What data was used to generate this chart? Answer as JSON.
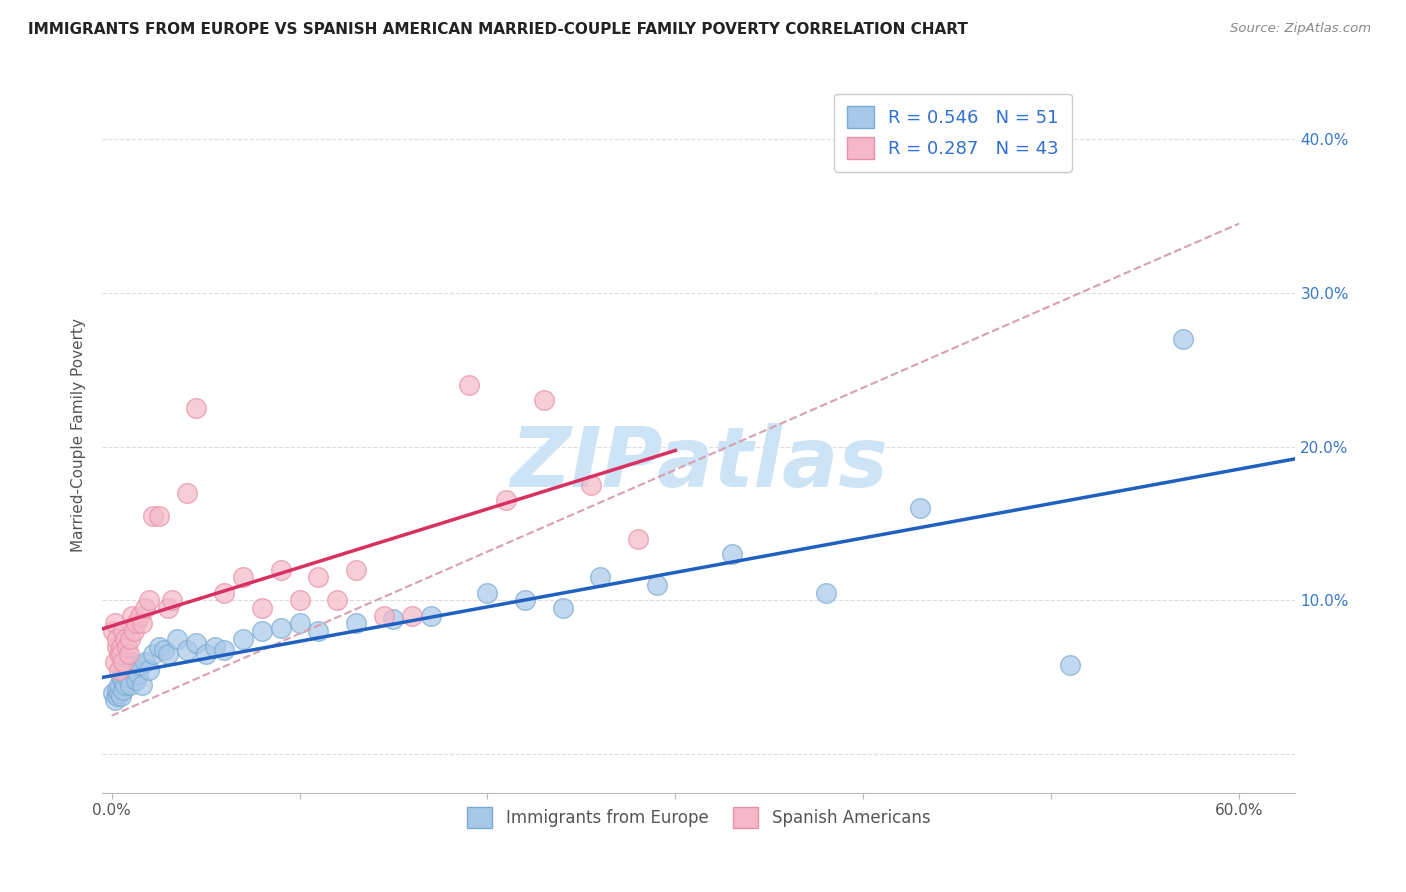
{
  "title": "IMMIGRANTS FROM EUROPE VS SPANISH AMERICAN MARRIED-COUPLE FAMILY POVERTY CORRELATION CHART",
  "source": "Source: ZipAtlas.com",
  "ylabel": "Married-Couple Family Poverty",
  "x_ticks": [
    0.0,
    0.1,
    0.2,
    0.3,
    0.4,
    0.5,
    0.6
  ],
  "y_ticks": [
    0.0,
    0.1,
    0.2,
    0.3,
    0.4
  ],
  "right_y_tick_labels": [
    "",
    "10.0%",
    "20.0%",
    "30.0%",
    "40.0%"
  ],
  "x_tick_labels": [
    "0.0%",
    "",
    "",
    "",
    "",
    "",
    "60.0%"
  ],
  "blue_R": 0.546,
  "blue_N": 51,
  "pink_R": 0.287,
  "pink_N": 43,
  "blue_color": "#a8c8e8",
  "pink_color": "#f4b8c8",
  "blue_edge_color": "#7aaad0",
  "pink_edge_color": "#e890a8",
  "blue_line_color": "#2060c0",
  "pink_line_color": "#d83060",
  "dashed_line_color": "#d8a0b0",
  "legend_text_color": "#3070d0",
  "watermark_color": "#cce4f5",
  "xlim": [
    -0.005,
    0.63
  ],
  "ylim": [
    -0.025,
    0.44
  ],
  "figsize": [
    14.06,
    8.92
  ],
  "dpi": 100,
  "blue_points_x": [
    0.001,
    0.002,
    0.003,
    0.003,
    0.004,
    0.004,
    0.005,
    0.005,
    0.006,
    0.006,
    0.007,
    0.007,
    0.008,
    0.009,
    0.01,
    0.011,
    0.012,
    0.013,
    0.014,
    0.015,
    0.016,
    0.018,
    0.02,
    0.022,
    0.025,
    0.028,
    0.03,
    0.035,
    0.04,
    0.045,
    0.05,
    0.055,
    0.06,
    0.07,
    0.08,
    0.09,
    0.1,
    0.11,
    0.13,
    0.15,
    0.17,
    0.2,
    0.22,
    0.24,
    0.26,
    0.29,
    0.33,
    0.38,
    0.43,
    0.51,
    0.57
  ],
  "blue_points_y": [
    0.04,
    0.035,
    0.038,
    0.042,
    0.04,
    0.045,
    0.038,
    0.05,
    0.042,
    0.048,
    0.045,
    0.055,
    0.05,
    0.058,
    0.045,
    0.06,
    0.055,
    0.048,
    0.052,
    0.058,
    0.045,
    0.06,
    0.055,
    0.065,
    0.07,
    0.068,
    0.065,
    0.075,
    0.068,
    0.072,
    0.065,
    0.07,
    0.068,
    0.075,
    0.08,
    0.082,
    0.085,
    0.08,
    0.085,
    0.088,
    0.09,
    0.105,
    0.1,
    0.095,
    0.115,
    0.11,
    0.13,
    0.105,
    0.16,
    0.058,
    0.27
  ],
  "pink_points_x": [
    0.001,
    0.002,
    0.002,
    0.003,
    0.003,
    0.004,
    0.004,
    0.005,
    0.005,
    0.006,
    0.006,
    0.007,
    0.008,
    0.009,
    0.01,
    0.011,
    0.012,
    0.013,
    0.015,
    0.016,
    0.018,
    0.02,
    0.022,
    0.025,
    0.03,
    0.032,
    0.04,
    0.045,
    0.06,
    0.07,
    0.08,
    0.09,
    0.1,
    0.11,
    0.12,
    0.13,
    0.145,
    0.16,
    0.19,
    0.21,
    0.23,
    0.255,
    0.28
  ],
  "pink_points_y": [
    0.08,
    0.06,
    0.085,
    0.07,
    0.075,
    0.065,
    0.055,
    0.07,
    0.065,
    0.08,
    0.06,
    0.075,
    0.07,
    0.065,
    0.075,
    0.09,
    0.08,
    0.085,
    0.09,
    0.085,
    0.095,
    0.1,
    0.155,
    0.155,
    0.095,
    0.1,
    0.17,
    0.225,
    0.105,
    0.115,
    0.095,
    0.12,
    0.1,
    0.115,
    0.1,
    0.12,
    0.09,
    0.09,
    0.24,
    0.165,
    0.23,
    0.175,
    0.14
  ]
}
